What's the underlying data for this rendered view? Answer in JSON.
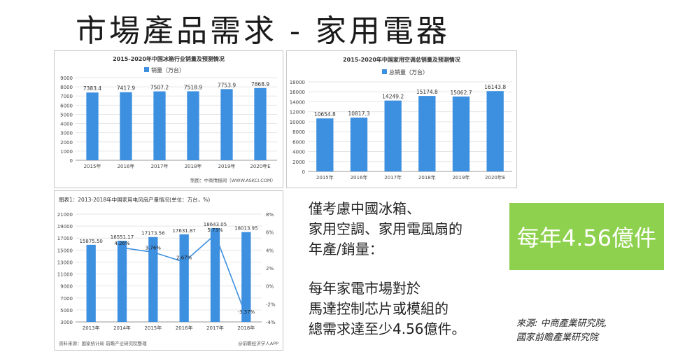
{
  "slide": {
    "title": "市場產品需求 - 家用電器",
    "text_block_1": [
      "僅考慮中國冰箱、",
      "家用空調、家用電風扇的",
      "年產/銷量："
    ],
    "text_block_2": [
      "每年家電市場對於",
      "馬達控制芯片或模組的",
      "總需求達至少4.56億件。"
    ],
    "callout": "每年4.56億件",
    "source_lines": [
      "來源: 中商產業研究院,",
      "國家前瞻產業研究院"
    ],
    "colors": {
      "callout_bg": "#8ed14e",
      "bar": "#3d8fe0",
      "line": "#3d8fe0"
    }
  },
  "chart_data": [
    {
      "type": "bar",
      "title": "2015-2020年中国冰箱行业销量及预测情况",
      "legend": "销量（万台）",
      "categories": [
        "2015年",
        "2016年",
        "2017年",
        "2018年",
        "2019年",
        "2020年E"
      ],
      "value_labels": [
        "7383.4",
        "7417.9",
        "7507.2",
        "7518.9",
        "7753.9",
        "7868.9"
      ],
      "values": [
        7383.4,
        7417.9,
        7507.2,
        7518.9,
        7753.9,
        7868.9
      ],
      "ylim": [
        0,
        9000
      ],
      "yticks": [
        "0",
        "1000",
        "2000",
        "3000",
        "4000",
        "5000",
        "6000",
        "7000",
        "8000",
        "9000"
      ],
      "footer": "制图：中商情报网（WWW.ASKCI.COM）"
    },
    {
      "type": "bar",
      "title": "2015-2020年中国家用空调总销量及预测情况",
      "legend": "总销量（万台）",
      "categories": [
        "2015年",
        "2016年",
        "2017年",
        "2018年",
        "2019年",
        "2020年E"
      ],
      "value_labels": [
        "10654.8",
        "10817.3",
        "14249.2",
        "15174.8",
        "15062.7",
        "16143.8"
      ],
      "values": [
        10654.8,
        10817.3,
        14249.2,
        15174.8,
        15062.7,
        16143.8
      ],
      "ylim": [
        0,
        18000
      ],
      "yticks": [
        "0",
        "2000",
        "4000",
        "6000",
        "8000",
        "10000",
        "12000",
        "14000",
        "16000",
        "18000"
      ]
    },
    {
      "type": "bar",
      "title": "图表1：2013-2018年中国家用电风扇产量情况(单位：万台，%)",
      "categories": [
        "2013年",
        "2014年",
        "2015年",
        "2016年",
        "2017年",
        "2018年"
      ],
      "value_labels": [
        "15875.50",
        "16551.17",
        "17173.56",
        "17631.87",
        "18643.05",
        "18013.95"
      ],
      "values": [
        15875.5,
        16551.17,
        17173.56,
        17631.87,
        18643.05,
        18013.95
      ],
      "growth_labels": [
        "4.26%",
        "3.76%",
        "2.67%",
        "5.73%",
        "-3.37%"
      ],
      "growth": [
        4.26,
        3.76,
        2.67,
        5.73,
        -3.37
      ],
      "ylim": [
        3000,
        21000
      ],
      "yticks": [
        "3000",
        "5000",
        "7000",
        "9000",
        "11000",
        "13000",
        "15000",
        "17000",
        "19000",
        "21000"
      ],
      "y2lim": [
        -4,
        8
      ],
      "y2ticks": [
        "-4%",
        "-2%",
        "0%",
        "2%",
        "4%",
        "6%",
        "8%"
      ],
      "footer_left": "资料来源：国家统计局 前瞻产业研究院整理",
      "footer_right": "@前瞻经济学人APP"
    }
  ]
}
